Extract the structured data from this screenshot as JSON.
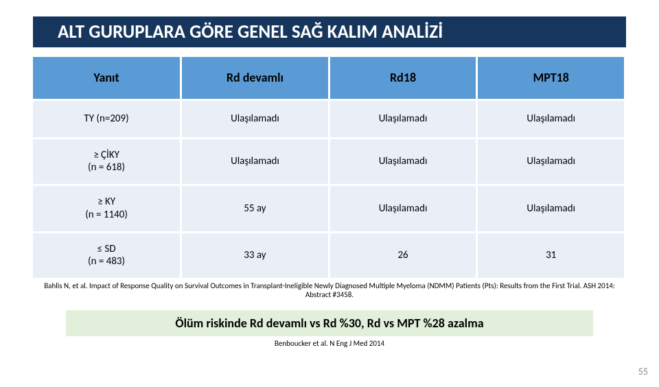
{
  "title": {
    "text": "ALT GURUPLARA GÖRE GENEL SAĞ KALIM ANALİZİ",
    "bg": "#17365d",
    "color": "#ffffff"
  },
  "table": {
    "header_bg": "#5b9bd5",
    "row_bg": "#eaeff7",
    "headers": [
      "Yanıt",
      "Rd devamlı",
      "Rd18",
      "MPT18"
    ],
    "rows": [
      {
        "label": "TY (n=209)",
        "cells": [
          "Ulaşılamadı",
          "Ulaşılamadı",
          "Ulaşılamadı"
        ]
      },
      {
        "label": "≥ ÇİKY\n(n = 618)",
        "cells": [
          "Ulaşılamadı",
          "Ulaşılamadı",
          "Ulaşılamadı"
        ]
      },
      {
        "label": "≥ KY\n(n = 1140)",
        "cells": [
          "55 ay",
          "Ulaşılamadı",
          "Ulaşılamadı"
        ]
      },
      {
        "label": "≤ SD\n(n = 483)",
        "cells": [
          "33 ay",
          "26",
          "31"
        ]
      }
    ]
  },
  "citation": "Bahlis N, et al. Impact of Response Quality on Survival Outcomes in Transplant-Ineligible Newly Diagnosed Multiple Myeloma (NDMM) Patients (Pts): Results from the First Trial. ASH 2014: Abstract #3458.",
  "conclusion": {
    "text": "Ölüm riskinde Rd devamlı vs Rd %30,  Rd vs MPT %28 azalma",
    "bg": "#e2efda"
  },
  "subcite": "Benboucker et al.  N Eng J Med 2014",
  "slide_number": "55"
}
